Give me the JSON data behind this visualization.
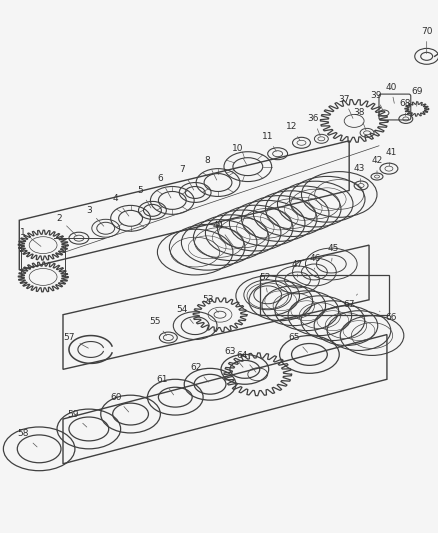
{
  "bg": "#f0f0f0",
  "lc": "#404040",
  "tc": "#303030",
  "fig_w": 4.39,
  "fig_h": 5.33,
  "dpi": 100
}
